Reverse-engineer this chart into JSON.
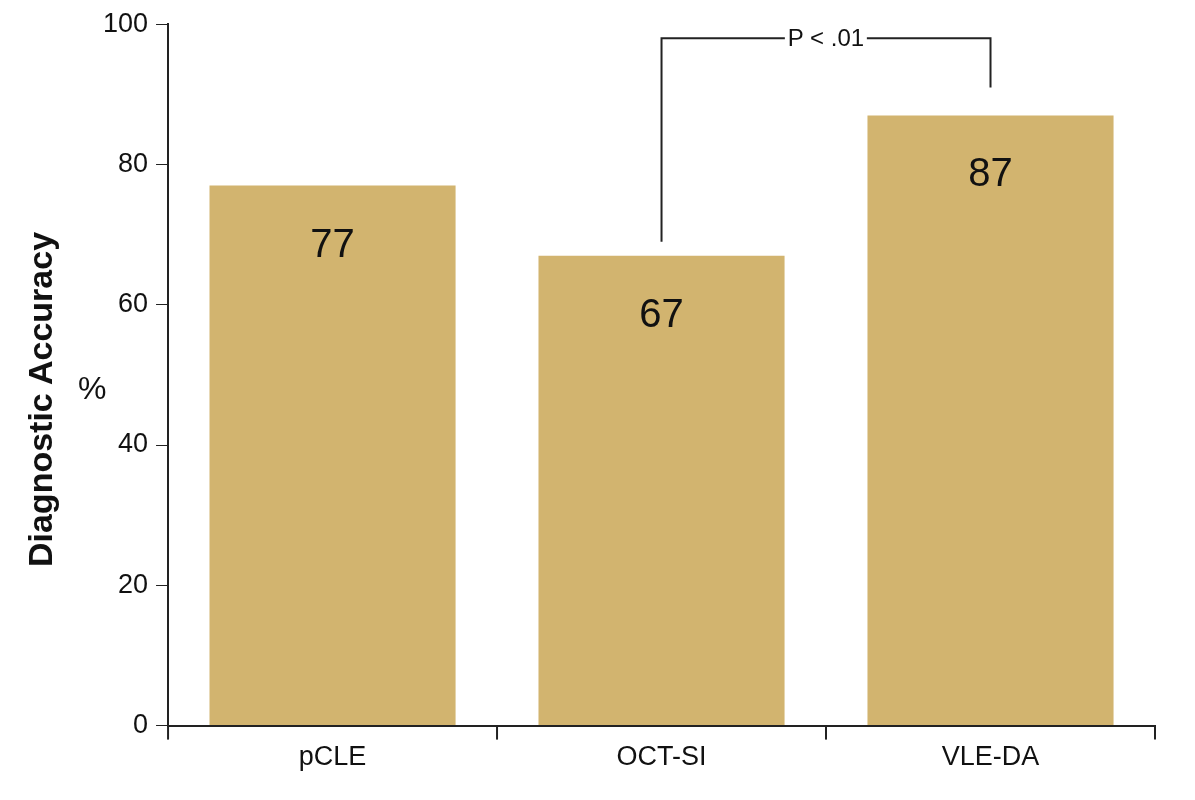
{
  "chart_data": {
    "type": "bar",
    "ylabel": "Diagnostic Accuracy",
    "categories": [
      "pCLE",
      "OCT-SI",
      "VLE-DA"
    ],
    "values": [
      77,
      67,
      87
    ],
    "color": "#d2b46f",
    "ylim": [
      0,
      100
    ],
    "yticks": [
      0,
      20,
      40,
      60,
      80,
      100
    ],
    "grid": false,
    "legend": false,
    "data_labels": true,
    "annotations": [
      "%",
      "P < .01"
    ]
  }
}
